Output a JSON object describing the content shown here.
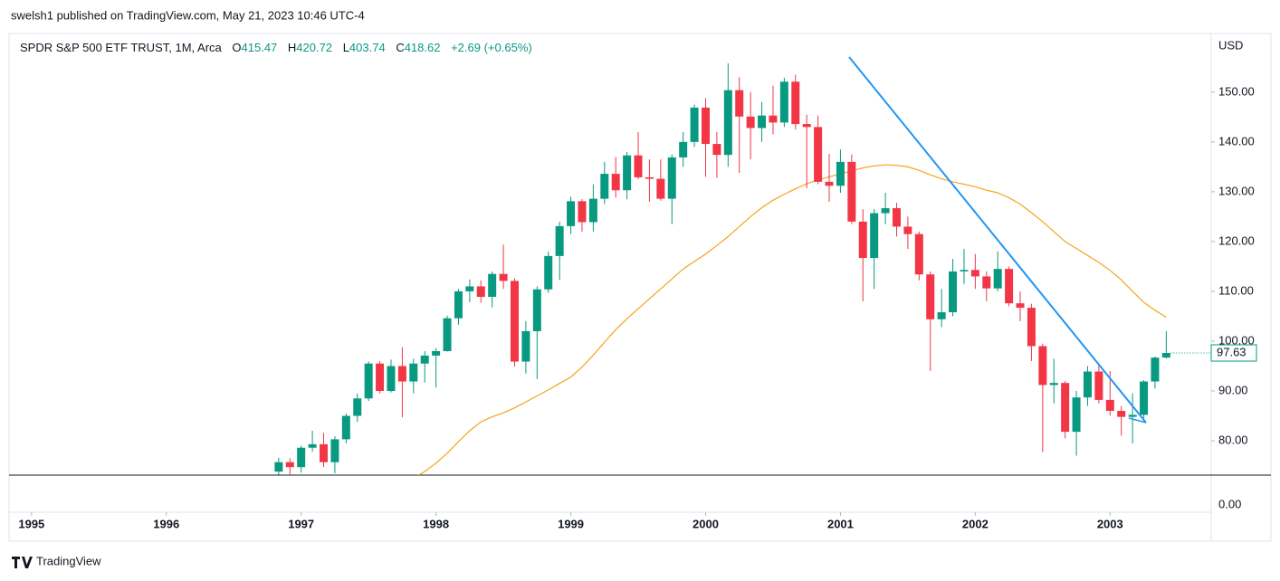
{
  "header": {
    "byline": "swelsh1 published on TradingView.com, May 21, 2023 10:46 UTC-4"
  },
  "legend": {
    "symbol": "SPDR S&P 500 ETF TRUST, 1M, Arca",
    "open_label": "O",
    "open": 415.47,
    "high_label": "H",
    "high": 420.72,
    "low_label": "L",
    "low": 403.74,
    "close_label": "C",
    "close": 418.62,
    "change": "+2.69 (+0.65%)"
  },
  "footer": {
    "brand": "TradingView"
  },
  "chart_data": {
    "type": "candlestick",
    "currency": "USD",
    "up_color": "#089981",
    "down_color": "#f23645",
    "x": [
      "1996-11",
      "1996-12",
      "1997-01",
      "1997-02",
      "1997-03",
      "1997-04",
      "1997-05",
      "1997-06",
      "1997-07",
      "1997-08",
      "1997-09",
      "1997-10",
      "1997-11",
      "1997-12",
      "1998-01",
      "1998-02",
      "1998-03",
      "1998-04",
      "1998-05",
      "1998-06",
      "1998-07",
      "1998-08",
      "1998-09",
      "1998-10",
      "1998-11",
      "1998-12",
      "1999-01",
      "1999-02",
      "1999-03",
      "1999-04",
      "1999-05",
      "1999-06",
      "1999-07",
      "1999-08",
      "1999-09",
      "1999-10",
      "1999-11",
      "1999-12",
      "2000-01",
      "2000-02",
      "2000-03",
      "2000-04",
      "2000-05",
      "2000-06",
      "2000-07",
      "2000-08",
      "2000-09",
      "2000-10",
      "2000-11",
      "2000-12",
      "2001-01",
      "2001-02",
      "2001-03",
      "2001-04",
      "2001-05",
      "2001-06",
      "2001-07",
      "2001-08",
      "2001-09",
      "2001-10",
      "2001-11",
      "2001-12",
      "2002-01",
      "2002-02",
      "2002-03",
      "2002-04",
      "2002-05",
      "2002-06",
      "2002-07",
      "2002-08",
      "2002-09",
      "2002-10",
      "2002-11",
      "2002-12",
      "2003-01",
      "2003-02",
      "2003-03",
      "2003-04",
      "2003-05",
      "2003-06"
    ],
    "open": [
      73.8,
      75.7,
      74.7,
      78.6,
      79.3,
      75.7,
      80.3,
      85.0,
      88.5,
      95.5,
      90.0,
      95.0,
      91.9,
      95.5,
      97.1,
      98.0,
      104.6,
      110.0,
      111.0,
      108.9,
      113.5,
      112.1,
      95.9,
      102.0,
      110.4,
      117.1,
      123.1,
      128.1,
      123.9,
      128.6,
      133.6,
      130.3,
      137.3,
      132.9,
      132.6,
      128.6,
      136.9,
      140.0,
      146.9,
      139.6,
      137.4,
      150.4,
      145.1,
      142.8,
      145.3,
      143.9,
      152.1,
      143.6,
      143.0,
      132.0,
      131.2,
      136.0,
      124.0,
      116.7,
      125.7,
      126.7,
      123.0,
      121.5,
      113.4,
      104.4,
      105.8,
      114.0,
      114.3,
      113.0,
      110.6,
      114.5,
      107.6,
      106.7,
      99.0,
      91.2,
      91.6,
      81.8,
      88.7,
      93.9,
      88.2,
      86.0,
      84.8,
      85.2,
      91.9,
      96.7
    ],
    "high": [
      76.6,
      76.5,
      79.0,
      82.0,
      81.6,
      80.9,
      85.5,
      89.5,
      95.9,
      96.0,
      96.3,
      98.8,
      96.5,
      98.0,
      98.6,
      105.1,
      110.5,
      112.4,
      112.2,
      114.0,
      119.4,
      112.6,
      104.0,
      111.0,
      118.0,
      124.0,
      129.0,
      128.5,
      131.5,
      136.0,
      137.0,
      138.0,
      142.0,
      136.5,
      136.5,
      137.5,
      142.0,
      147.5,
      148.8,
      142.0,
      155.8,
      153.0,
      150.0,
      148.0,
      151.3,
      152.9,
      153.5,
      145.5,
      145.3,
      137.6,
      138.5,
      137.5,
      126.5,
      126.5,
      129.8,
      127.8,
      125.0,
      122.0,
      114.0,
      110.5,
      116.5,
      118.5,
      117.5,
      114.0,
      118.0,
      115.0,
      110.0,
      107.5,
      99.5,
      96.5,
      92.0,
      90.0,
      95.0,
      95.5,
      94.0,
      87.0,
      89.5,
      92.2,
      96.9,
      102.0
    ],
    "low": [
      73.2,
      73.0,
      73.6,
      77.8,
      74.7,
      73.5,
      79.5,
      83.8,
      88.0,
      89.5,
      89.7,
      84.7,
      89.5,
      91.7,
      90.7,
      97.9,
      103.3,
      107.8,
      107.7,
      106.8,
      110.5,
      94.9,
      93.5,
      92.4,
      109.7,
      112.3,
      121.5,
      122.0,
      122.0,
      127.5,
      128.8,
      128.5,
      132.5,
      128.0,
      128.2,
      123.5,
      135.0,
      139.0,
      133.0,
      132.8,
      135.0,
      133.8,
      136.5,
      140.0,
      141.5,
      143.0,
      142.5,
      130.7,
      131.5,
      128.0,
      129.8,
      123.5,
      108.0,
      110.5,
      123.5,
      121.0,
      118.5,
      112.2,
      94.0,
      102.8,
      105.0,
      111.5,
      110.5,
      108.0,
      110.0,
      107.0,
      104.0,
      96.0,
      77.7,
      87.5,
      80.5,
      77.0,
      87.0,
      87.5,
      85.0,
      81.0,
      79.5,
      84.5,
      90.5,
      96.5
    ],
    "close": [
      75.7,
      74.7,
      78.6,
      79.3,
      75.7,
      80.3,
      85.0,
      88.5,
      95.5,
      90.0,
      95.0,
      91.9,
      95.5,
      97.1,
      98.0,
      104.6,
      110.0,
      111.0,
      108.9,
      113.5,
      112.1,
      95.9,
      102.0,
      110.4,
      117.1,
      123.1,
      128.1,
      123.9,
      128.6,
      133.6,
      130.3,
      137.3,
      132.9,
      132.6,
      128.6,
      136.9,
      140.0,
      146.9,
      139.6,
      137.4,
      150.4,
      145.1,
      142.8,
      145.3,
      143.9,
      152.1,
      143.6,
      143.0,
      132.0,
      131.2,
      136.0,
      124.0,
      116.7,
      125.7,
      126.7,
      123.0,
      121.5,
      113.4,
      104.4,
      105.8,
      114.0,
      114.3,
      113.0,
      110.6,
      114.5,
      107.6,
      106.7,
      99.0,
      91.2,
      91.6,
      81.8,
      88.7,
      93.9,
      88.2,
      86.0,
      84.8,
      85.2,
      91.9,
      96.7,
      97.63
    ],
    "moving_average": {
      "color": "#f7a21b",
      "values": [
        null,
        null,
        null,
        null,
        null,
        null,
        null,
        null,
        null,
        null,
        null,
        null,
        72.5,
        73.8,
        75.5,
        77.5,
        79.8,
        82,
        83.8,
        84.8,
        85.6,
        86.6,
        87.8,
        89.0,
        90.2,
        91.5,
        92.8,
        94.8,
        97.2,
        99.8,
        102.3,
        104.5,
        106.5,
        108.5,
        110.5,
        112.5,
        114.5,
        116,
        117.5,
        119.2,
        121,
        123,
        125,
        126.8,
        128.3,
        129.5,
        130.6,
        131.6,
        132.4,
        133.0,
        133.6,
        134.2,
        134.8,
        135.2,
        135.4,
        135.3,
        135.0,
        134.3,
        133.4,
        132.6,
        132.0,
        131.5,
        131.0,
        130.3,
        129.8,
        128.8,
        127.5,
        125.8,
        124.0,
        122.0,
        120.0,
        118.6,
        117.2,
        115.8,
        114.2,
        112.3,
        110.0,
        107.8,
        106.2,
        104.8
      ]
    },
    "ylim": [
      73.1,
      161.6
    ],
    "yticks": [
      {
        "value": 80,
        "label": "80.00"
      },
      {
        "value": 90,
        "label": "90.00"
      },
      {
        "value": 100,
        "label": "100.00"
      },
      {
        "value": 110,
        "label": "110.00"
      },
      {
        "value": 120,
        "label": "120.00"
      },
      {
        "value": 130,
        "label": "130.00"
      },
      {
        "value": 140,
        "label": "140.00"
      },
      {
        "value": 150,
        "label": "150.00"
      }
    ],
    "lower_pane_ticks": [
      {
        "value": 0,
        "label": "0.00"
      }
    ],
    "xlim": [
      "1994-11",
      "2003-10"
    ],
    "xticks": [
      {
        "value": "1995-01",
        "label": "1995"
      },
      {
        "value": "1996-01",
        "label": "1996"
      },
      {
        "value": "1997-01",
        "label": "1997"
      },
      {
        "value": "1998-01",
        "label": "1998"
      },
      {
        "value": "1999-01",
        "label": "1999"
      },
      {
        "value": "2000-01",
        "label": "2000"
      },
      {
        "value": "2001-01",
        "label": "2001"
      },
      {
        "value": "2002-01",
        "label": "2002"
      },
      {
        "value": "2003-01",
        "label": "2003"
      }
    ]
  }
}
